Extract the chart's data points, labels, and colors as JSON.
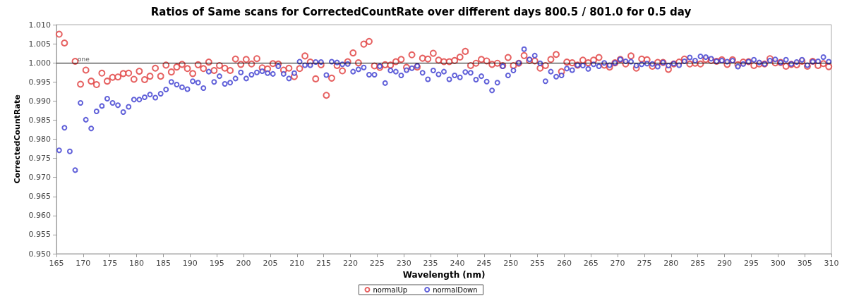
{
  "chart_data": {
    "type": "scatter",
    "title": "Ratios of Same scans for CorrectedCountRate over different days 800.5 / 801.0 for 0.5 day",
    "xlabel": "Wavelength (nm)",
    "ylabel": "CorrectedCountRate",
    "x": [
      165.5,
      166.5,
      167.5,
      168.5,
      169.5,
      170.5,
      171.5,
      172.5,
      173.5,
      174.5,
      175.5,
      176.5,
      177.5,
      178.5,
      179.5,
      180.5,
      181.5,
      182.5,
      183.5,
      184.5,
      185.5,
      186.5,
      187.5,
      188.5,
      189.5,
      190.5,
      191.5,
      192.5,
      193.5,
      194.5,
      195.5,
      196.5,
      197.5,
      198.5,
      199.5,
      200.5,
      201.5,
      202.5,
      203.5,
      204.5,
      205.5,
      206.5,
      207.5,
      208.5,
      209.5,
      210.5,
      211.5,
      212.5,
      213.5,
      214.5,
      215.5,
      216.5,
      217.5,
      218.5,
      219.5,
      220.5,
      221.5,
      222.5,
      223.5,
      224.5,
      225.5,
      226.5,
      227.5,
      228.5,
      229.5,
      230.5,
      231.5,
      232.5,
      233.5,
      234.5,
      235.5,
      236.5,
      237.5,
      238.5,
      239.5,
      240.5,
      241.5,
      242.5,
      243.5,
      244.5,
      245.5,
      246.5,
      247.5,
      248.5,
      249.5,
      250.5,
      251.5,
      252.5,
      253.5,
      254.5,
      255.5,
      256.5,
      257.5,
      258.5,
      259.5,
      260.5,
      261.5,
      262.5,
      263.5,
      264.5,
      265.5,
      266.5,
      267.5,
      268.5,
      269.5,
      270.5,
      271.5,
      272.5,
      273.5,
      274.5,
      275.5,
      276.5,
      277.5,
      278.5,
      279.5,
      280.5,
      281.5,
      282.5,
      283.5,
      284.5,
      285.5,
      286.5,
      287.5,
      288.5,
      289.5,
      290.5,
      291.5,
      292.5,
      293.5,
      294.5,
      295.5,
      296.5,
      297.5,
      298.5,
      299.5,
      300.5,
      301.5,
      302.5,
      303.5,
      304.5,
      305.5,
      306.5,
      307.5,
      308.5,
      309.5
    ],
    "series": [
      {
        "name": "normalUp",
        "color": "#e03a3a",
        "values": [
          1.0075,
          1.0052,
          null,
          1.0004,
          0.9944,
          0.9981,
          0.9952,
          0.9943,
          0.9973,
          0.9952,
          0.9962,
          0.9963,
          0.9972,
          0.9973,
          0.9957,
          0.9978,
          0.9956,
          0.9965,
          0.9986,
          0.9965,
          0.9994,
          0.9976,
          0.9989,
          0.9996,
          0.9985,
          0.9972,
          0.9995,
          0.9985,
          1.0002,
          0.998,
          0.9993,
          0.9986,
          0.998,
          1.001,
          0.9996,
          1.0009,
          0.9997,
          1.0011,
          0.9987,
          0.9984,
          0.9998,
          0.9997,
          0.9981,
          0.9986,
          0.9964,
          0.9985,
          1.0018,
          1.0002,
          0.9958,
          0.9995,
          0.9915,
          0.996,
          0.9993,
          0.9979,
          1.0003,
          1.0026,
          1.0,
          1.0049,
          1.0056,
          0.9992,
          0.9988,
          0.9995,
          0.9994,
          1.0003,
          1.0009,
          0.9988,
          1.0021,
          0.9989,
          1.0012,
          1.001,
          1.0025,
          1.0007,
          1.0003,
          1.0003,
          1.0006,
          1.0015,
          1.003,
          0.9993,
          0.9999,
          1.0009,
          1.0005,
          0.9996,
          0.9999,
          0.9993,
          1.0014,
          0.9993,
          0.9999,
          1.0019,
          1.0006,
          1.0005,
          0.9986,
          0.9993,
          1.0009,
          1.0022,
          0.9977,
          1.0002,
          1.0,
          0.9994,
          1.0007,
          1.0,
          1.0007,
          1.0014,
          0.9994,
          0.9989,
          1.0,
          1.0009,
          0.9997,
          1.0018,
          0.9986,
          1.001,
          1.0008,
          0.9991,
          1.0001,
          1.0001,
          0.9983,
          0.9997,
          1.0002,
          1.001,
          0.9997,
          0.9999,
          0.9997,
          1.0009,
          1.0006,
          1.0004,
          1.0008,
          0.9996,
          1.0008,
          0.9995,
          1.0002,
          1.0003,
          0.9993,
          0.9997,
          0.9997,
          1.0011,
          1.0,
          1.0001,
          0.9991,
          0.9996,
          0.9995,
          1.0004,
          0.9991,
          1.0004,
          0.9993,
          0.9998,
          0.999
        ]
      },
      {
        "name": "normalDown",
        "color": "#3a3ad0",
        "values": [
          0.9771,
          0.983,
          0.9768,
          0.9719,
          0.9895,
          0.9851,
          0.9828,
          0.9873,
          0.9887,
          0.9906,
          0.9895,
          0.9889,
          0.9871,
          0.9885,
          0.9904,
          0.9904,
          0.991,
          0.9917,
          0.9909,
          0.9919,
          0.993,
          0.995,
          0.9943,
          0.9936,
          0.9931,
          0.9952,
          0.9948,
          0.9934,
          0.9977,
          0.995,
          0.9965,
          0.9945,
          0.9948,
          0.9959,
          0.9975,
          0.9959,
          0.9969,
          0.9975,
          0.9978,
          0.9973,
          0.9971,
          0.9991,
          0.9971,
          0.9959,
          0.9973,
          1.0003,
          0.9994,
          0.9994,
          1.0002,
          1.0002,
          0.9968,
          1.0003,
          1.0001,
          0.9996,
          0.9997,
          0.9977,
          0.9983,
          0.9988,
          0.9969,
          0.9969,
          0.9991,
          0.9947,
          0.998,
          0.9977,
          0.9967,
          0.9981,
          0.9986,
          0.9992,
          0.9974,
          0.9957,
          0.998,
          0.997,
          0.9977,
          0.9957,
          0.9967,
          0.9962,
          0.9976,
          0.9974,
          0.9956,
          0.9965,
          0.9951,
          0.9928,
          0.9948,
          0.9991,
          0.9967,
          0.998,
          1.0,
          1.0036,
          1.0009,
          1.0019,
          0.9999,
          0.9952,
          0.9977,
          0.9964,
          0.9967,
          0.9985,
          0.9981,
          0.9994,
          0.9993,
          0.9984,
          0.9996,
          0.9991,
          1.0,
          0.9994,
          1.0,
          1.0009,
          1.0004,
          1.0003,
          0.9993,
          0.9996,
          0.9998,
          0.9997,
          0.999,
          1.0001,
          0.9993,
          0.9998,
          0.9994,
          1.0004,
          1.0014,
          1.0006,
          1.0017,
          1.0015,
          1.0011,
          1.0004,
          1.0006,
          1.0003,
          1.0006,
          0.999,
          0.9997,
          1.0003,
          1.0008,
          1.0001,
          0.9997,
          1.0006,
          1.0009,
          1.0001,
          1.0008,
          0.9997,
          1.0002,
          1.0008,
          0.9994,
          1.0003,
          1.0004,
          1.0015,
          1.0003
        ]
      }
    ],
    "xlim": [
      165,
      310
    ],
    "xticks": [
      165,
      170,
      175,
      180,
      185,
      190,
      195,
      200,
      205,
      210,
      215,
      220,
      225,
      230,
      235,
      240,
      245,
      250,
      255,
      260,
      265,
      270,
      275,
      280,
      285,
      290,
      295,
      300,
      305,
      310
    ],
    "ylim": [
      0.95,
      1.01
    ],
    "yticks": [
      {
        "value": 0.95,
        "label": "0.950"
      },
      {
        "value": 0.955,
        "label": "0.955"
      },
      {
        "value": 0.96,
        "label": "0.960"
      },
      {
        "value": 0.965,
        "label": "0.965"
      },
      {
        "value": 0.97,
        "label": "0.970"
      },
      {
        "value": 0.975,
        "label": "0.975"
      },
      {
        "value": 0.98,
        "label": "0.980"
      },
      {
        "value": 0.985,
        "label": "0.985"
      },
      {
        "value": 0.99,
        "label": "0.990"
      },
      {
        "value": 0.995,
        "label": "0.995"
      },
      {
        "value": 1.0,
        "label": "1.000"
      },
      {
        "value": 1.005,
        "label": "1.005"
      },
      {
        "value": 1.01,
        "label": "1.010"
      }
    ],
    "ref_lines": [
      {
        "axis": "y",
        "value": 1.0,
        "label": "one",
        "color": "#000000"
      }
    ],
    "marker": "circle",
    "grid": false,
    "legend": "bottom"
  }
}
